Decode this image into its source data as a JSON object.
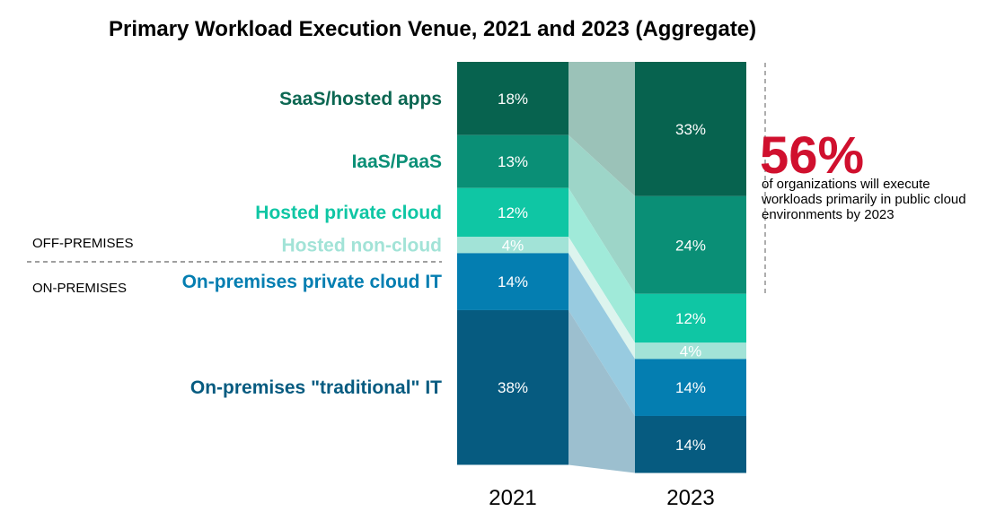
{
  "chart_data": {
    "type": "bar",
    "stacked": true,
    "normalized_percent": true,
    "title": "Primary Workload Execution Venue, 2021 and 2023 (Aggregate)",
    "categories": [
      "2021",
      "2023"
    ],
    "series": [
      {
        "name": "SaaS/hosted apps",
        "values": [
          18,
          33
        ],
        "labels": [
          "18%",
          "33%"
        ],
        "color": "#07634F",
        "label_color": "#0C6752",
        "band_color": "#9BC2B8"
      },
      {
        "name": "IaaS/PaaS",
        "values": [
          13,
          24
        ],
        "labels": [
          "13%",
          "24%"
        ],
        "color": "#0A8F76",
        "label_color": "#0A8F76",
        "band_color": "#9DD5C8"
      },
      {
        "name": "Hosted private cloud",
        "values": [
          12,
          12
        ],
        "labels": [
          "12%",
          "12%"
        ],
        "color": "#0FC6A4",
        "label_color": "#0FC6A4",
        "band_color": "#A0EAD9"
      },
      {
        "name": "Hosted non-cloud",
        "values": [
          4,
          4
        ],
        "labels": [
          "4%",
          "4%"
        ],
        "color": "#A2E3D7",
        "label_color": "#A2E3D7",
        "band_color": "#DDF4EE"
      },
      {
        "name": "On-premises private cloud IT",
        "values": [
          14,
          14
        ],
        "labels": [
          "14%",
          "14%"
        ],
        "color": "#047EB1",
        "label_color": "#047EB1",
        "band_color": "#98CBE0"
      },
      {
        "name": "On-premises \"traditional\" IT",
        "values": [
          38,
          14
        ],
        "labels": [
          "38%",
          "14%"
        ],
        "color": "#065B80",
        "label_color": "#065B80",
        "band_color": "#9CBFCF"
      }
    ],
    "regions": {
      "off_premises": "OFF-PREMISES",
      "on_premises": "ON-PREMISES"
    },
    "callout": {
      "value": "56%",
      "color": "#D0102E",
      "lines": [
        "of organizations will execute",
        "workloads primarily in public cloud",
        "environments by 2023"
      ]
    },
    "legend": "none",
    "grid": false
  }
}
